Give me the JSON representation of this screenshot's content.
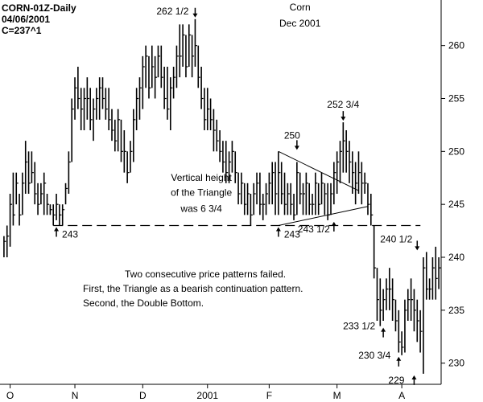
{
  "header": {
    "symbol": "CORN-01Z-Daily",
    "date": "04/06/2001",
    "close": "C=237^1"
  },
  "chart_data": {
    "type": "bar",
    "subtype": "ohlc-daily",
    "title": "Corn",
    "subtitle": "Dec 2001",
    "ylim": [
      228,
      264
    ],
    "yticks": [
      230,
      235,
      240,
      245,
      250,
      255,
      260
    ],
    "months": [
      "O",
      "N",
      "D",
      "2001",
      "F",
      "M",
      "A"
    ],
    "grid": false,
    "support_level": 243,
    "triangle": {
      "upper": [
        [
          89,
          250
        ],
        [
          115,
          246.3
        ]
      ],
      "lower": [
        [
          89,
          243
        ],
        [
          118,
          244.8
        ]
      ]
    },
    "annotations": [
      {
        "text": "262 1/2",
        "x": 62,
        "y": 262.5,
        "arrow": "down"
      },
      {
        "text": "Corn",
        "x": 96,
        "y": 263.3,
        "arrow": "none"
      },
      {
        "text": "Dec 2001",
        "x": 96,
        "y": 261.8,
        "arrow": "none"
      },
      {
        "text": "252 3/4",
        "x": 110,
        "y": 252.75,
        "arrow": "down"
      },
      {
        "text": "250",
        "x": 95,
        "y": 250,
        "arrow": "down"
      },
      {
        "text": "Vertical height",
        "x": 64,
        "y": 247.2,
        "arrow": "none"
      },
      {
        "text": "of the Triangle",
        "x": 64,
        "y": 245.8,
        "arrow": "none"
      },
      {
        "text": "was 6 3/4",
        "x": 64,
        "y": 244.3,
        "arrow": "none"
      },
      {
        "text": "243",
        "x": 17,
        "y": 243,
        "arrow": "up"
      },
      {
        "text": "243",
        "x": 89,
        "y": 243,
        "arrow": "up"
      },
      {
        "text": "243 1/2",
        "x": 107,
        "y": 243.5,
        "arrow": "up"
      },
      {
        "text": "240 1/2",
        "x": 134,
        "y": 240.5,
        "arrow": "down"
      },
      {
        "text": "233 1/2",
        "x": 123,
        "y": 233.5,
        "arrow": "up"
      },
      {
        "text": "230 3/4",
        "x": 128,
        "y": 230.75,
        "arrow": "up"
      },
      {
        "text": "229",
        "x": 133,
        "y": 229,
        "arrow": "up"
      }
    ],
    "notes": [
      "Two consecutive price patterns failed.",
      "First, the Triangle as a bearish continuation pattern.",
      "Second, the Double Bottom."
    ],
    "ohlc": [
      [
        242,
        240,
        241.5
      ],
      [
        243,
        240,
        242
      ],
      [
        246,
        241,
        245
      ],
      [
        248,
        243,
        244
      ],
      [
        248,
        245,
        247
      ],
      [
        246,
        243,
        244
      ],
      [
        248,
        244,
        247
      ],
      [
        251,
        246,
        249
      ],
      [
        250,
        246,
        247
      ],
      [
        250,
        247,
        248
      ],
      [
        249,
        245,
        246
      ],
      [
        247,
        244,
        245
      ],
      [
        247,
        245,
        246
      ],
      [
        248,
        244,
        247
      ],
      [
        246,
        244,
        245
      ],
      [
        245,
        244,
        244.5
      ],
      [
        245,
        243,
        244
      ],
      [
        246,
        243.5,
        245
      ],
      [
        245,
        243,
        244
      ],
      [
        245,
        243,
        244.5
      ],
      [
        247,
        245,
        246.5
      ],
      [
        250,
        246,
        249
      ],
      [
        255,
        249,
        254
      ],
      [
        257,
        253,
        256
      ],
      [
        258,
        254,
        255
      ],
      [
        256,
        252,
        254
      ],
      [
        256,
        252,
        255
      ],
      [
        257,
        253,
        255
      ],
      [
        256,
        252,
        253
      ],
      [
        255,
        251,
        254
      ],
      [
        256,
        253,
        255
      ],
      [
        257,
        253,
        256
      ],
      [
        257,
        254,
        255
      ],
      [
        256,
        253,
        254
      ],
      [
        256,
        252,
        253
      ],
      [
        254,
        251,
        252
      ],
      [
        253,
        250,
        251
      ],
      [
        254,
        250,
        253
      ],
      [
        253,
        249,
        250
      ],
      [
        252,
        248,
        250
      ],
      [
        250,
        247,
        248
      ],
      [
        251,
        248,
        250
      ],
      [
        254,
        249,
        253
      ],
      [
        256,
        252,
        255
      ],
      [
        257,
        253,
        256
      ],
      [
        259,
        254,
        258
      ],
      [
        260,
        256,
        259
      ],
      [
        259,
        255,
        256
      ],
      [
        260,
        256,
        258
      ],
      [
        259,
        255,
        257
      ],
      [
        260,
        257,
        259
      ],
      [
        260,
        256,
        257
      ],
      [
        258,
        254,
        255
      ],
      [
        258,
        253,
        254
      ],
      [
        257,
        252,
        256
      ],
      [
        258,
        255,
        257
      ],
      [
        260,
        256,
        259
      ],
      [
        262,
        257,
        259
      ],
      [
        262,
        258,
        261
      ],
      [
        261,
        257,
        258
      ],
      [
        262,
        258,
        261
      ],
      [
        261,
        257,
        259
      ],
      [
        262.5,
        258,
        260
      ],
      [
        260,
        256,
        257
      ],
      [
        258,
        254,
        255
      ],
      [
        256,
        252,
        253
      ],
      [
        256,
        252,
        254
      ],
      [
        255,
        252,
        253
      ],
      [
        254,
        250,
        252
      ],
      [
        253,
        250,
        251
      ],
      [
        252,
        249,
        250
      ],
      [
        251,
        248,
        249
      ],
      [
        251,
        247,
        248
      ],
      [
        250,
        247,
        249
      ],
      [
        251,
        248,
        250
      ],
      [
        250,
        247,
        248
      ],
      [
        248,
        245,
        246
      ],
      [
        248,
        245,
        247
      ],
      [
        247,
        244,
        245
      ],
      [
        247,
        244,
        246
      ],
      [
        246,
        243,
        244
      ],
      [
        247,
        244,
        246
      ],
      [
        248,
        245,
        247
      ],
      [
        248,
        244,
        245
      ],
      [
        246,
        243.5,
        245
      ],
      [
        247,
        244,
        246
      ],
      [
        248,
        245,
        247
      ],
      [
        249,
        245,
        248
      ],
      [
        249,
        244,
        246
      ],
      [
        250,
        244,
        248
      ],
      [
        249,
        245,
        246
      ],
      [
        248,
        244,
        245
      ],
      [
        247,
        244,
        246
      ],
      [
        247,
        244,
        245
      ],
      [
        246,
        243.5,
        244
      ],
      [
        249,
        244,
        248
      ],
      [
        248,
        245,
        246
      ],
      [
        247,
        244,
        246
      ],
      [
        248,
        244,
        247
      ],
      [
        247,
        244,
        245
      ],
      [
        246,
        244,
        245
      ],
      [
        248,
        244,
        247
      ],
      [
        247,
        244,
        245
      ],
      [
        248,
        245,
        247
      ],
      [
        247,
        244,
        246
      ],
      [
        247,
        243.5,
        244
      ],
      [
        247,
        244,
        246
      ],
      [
        249,
        245,
        248
      ],
      [
        250,
        246,
        249
      ],
      [
        251,
        247,
        250
      ],
      [
        252.75,
        248,
        251
      ],
      [
        252,
        248,
        250
      ],
      [
        251,
        247,
        249
      ],
      [
        250,
        246,
        248
      ],
      [
        249,
        245,
        247
      ],
      [
        250,
        246,
        248
      ],
      [
        249,
        245,
        247
      ],
      [
        248,
        246,
        247
      ],
      [
        247,
        244,
        245
      ],
      [
        246,
        243,
        244
      ],
      [
        243,
        238,
        239
      ],
      [
        239,
        234,
        236
      ],
      [
        238,
        233.5,
        235
      ],
      [
        237,
        234,
        236
      ],
      [
        238,
        235,
        237
      ],
      [
        239,
        235,
        237
      ],
      [
        238,
        234,
        236
      ],
      [
        236,
        233,
        234
      ],
      [
        235,
        231,
        232
      ],
      [
        233,
        230.75,
        231.5
      ],
      [
        236,
        231,
        235
      ],
      [
        237,
        234,
        236
      ],
      [
        238,
        234,
        236
      ],
      [
        237,
        233,
        235
      ],
      [
        236,
        232,
        234
      ],
      [
        235,
        231,
        233
      ],
      [
        240,
        229,
        239
      ],
      [
        240.5,
        236,
        237
      ],
      [
        238,
        236,
        237
      ],
      [
        240,
        236,
        239
      ],
      [
        241,
        236,
        238
      ],
      [
        240,
        237,
        239
      ]
    ]
  }
}
